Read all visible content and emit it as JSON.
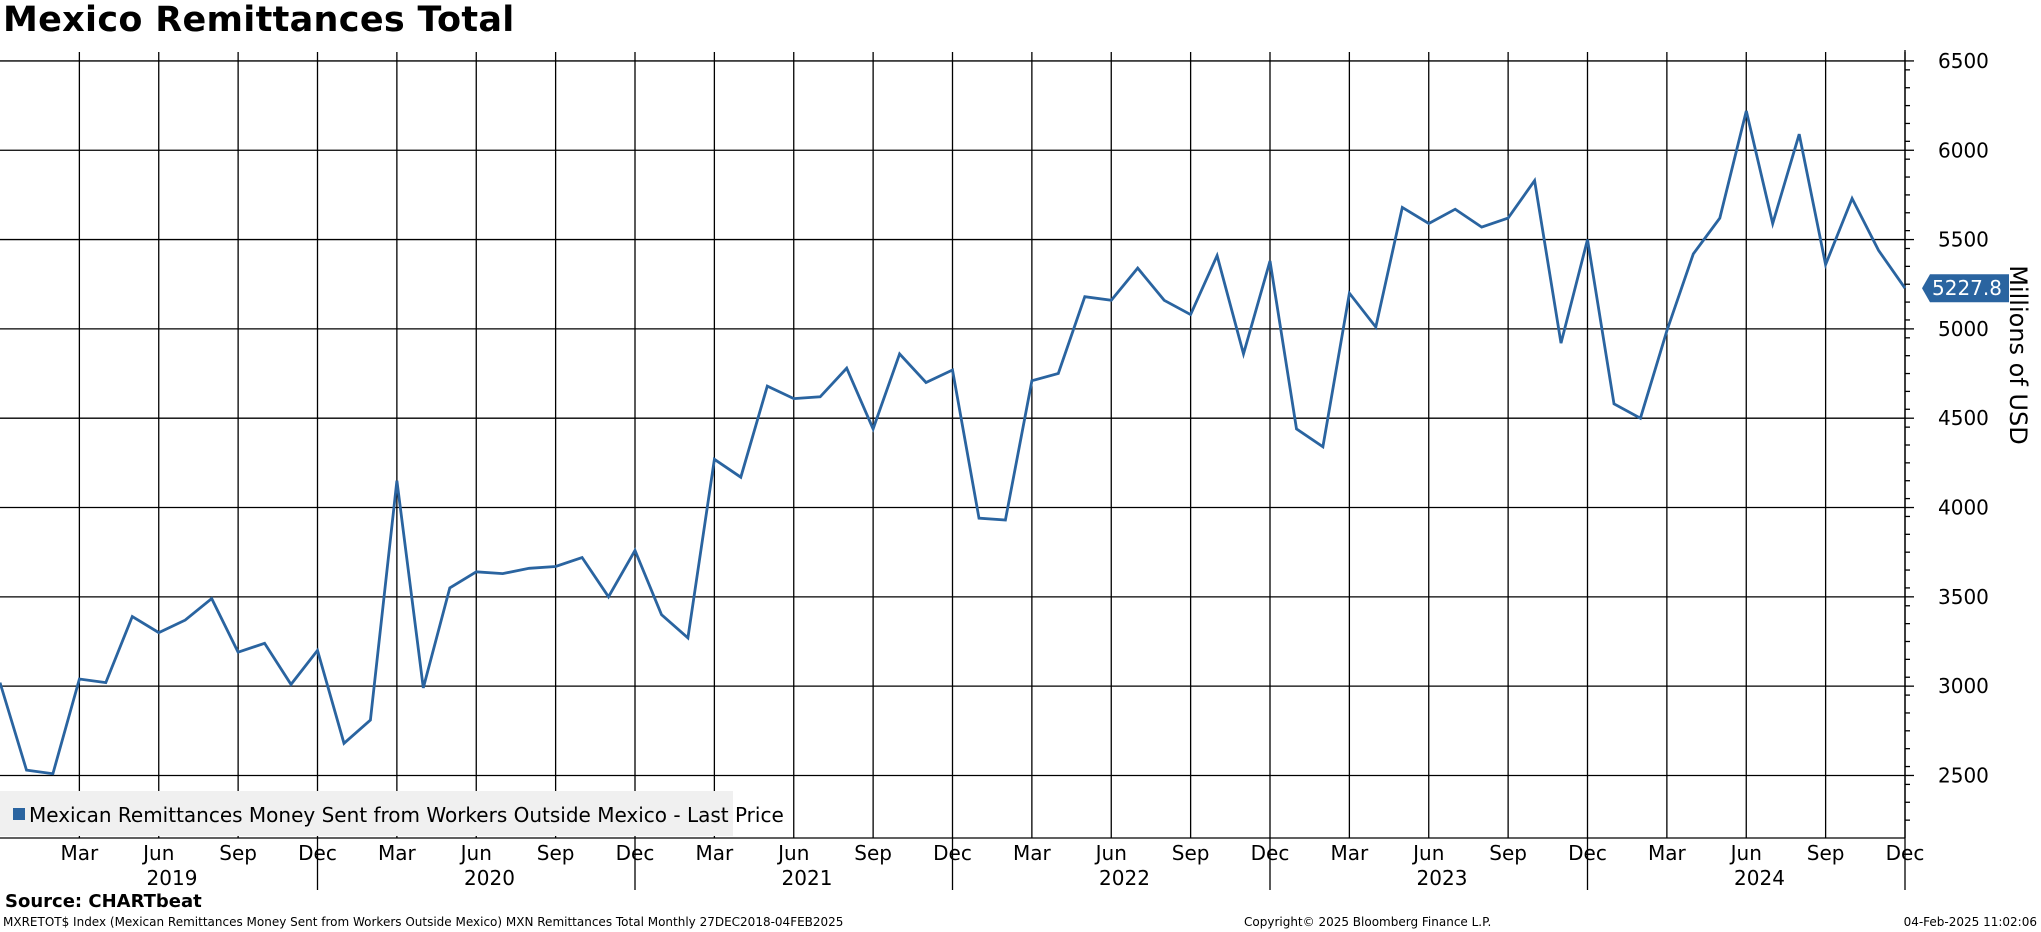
{
  "title": "Mexico Remittances Total",
  "source": "Source: CHARTbeat",
  "footer": {
    "left": "MXRETOT$ Index (Mexican Remittances Money Sent from Workers Outside Mexico) MXN Remittances Total  Monthly 27DEC2018-04FEB2025",
    "middle": "Copyright© 2025 Bloomberg Finance L.P.",
    "right": "04-Feb-2025 11:02:06"
  },
  "colors": {
    "series": "#2a64a0",
    "legend_bg": "#f0f0f0"
  },
  "chart_data": {
    "type": "line",
    "title": "Mexico Remittances Total",
    "ylabel": "Millions of USD",
    "ylim": [
      2150,
      6550
    ],
    "yticks": [
      2500,
      3000,
      3500,
      4000,
      4500,
      5000,
      5500,
      6000,
      6500
    ],
    "x_start": "2018-12",
    "x_end": "2024-12",
    "month_ticks": [
      "Mar",
      "Jun",
      "Sep",
      "Dec",
      "Mar",
      "Jun",
      "Sep",
      "Dec",
      "Mar",
      "Jun",
      "Sep",
      "Dec",
      "Mar",
      "Jun",
      "Sep",
      "Dec",
      "Mar",
      "Jun",
      "Sep",
      "Dec",
      "Mar",
      "Jun",
      "Sep",
      "Dec"
    ],
    "year_labels": [
      "2019",
      "2020",
      "2021",
      "2022",
      "2023",
      "2024"
    ],
    "grid": true,
    "legend_position": "bottom-left",
    "series": [
      {
        "name": "Mexican Remittances Money Sent from Workers Outside Mexico - Last Price",
        "last_value_label": "5227.8",
        "x": [
          "2018-12",
          "2019-01",
          "2019-02",
          "2019-03",
          "2019-04",
          "2019-05",
          "2019-06",
          "2019-07",
          "2019-08",
          "2019-09",
          "2019-10",
          "2019-11",
          "2019-12",
          "2020-01",
          "2020-02",
          "2020-03",
          "2020-04",
          "2020-05",
          "2020-06",
          "2020-07",
          "2020-08",
          "2020-09",
          "2020-10",
          "2020-11",
          "2020-12",
          "2021-01",
          "2021-02",
          "2021-03",
          "2021-04",
          "2021-05",
          "2021-06",
          "2021-07",
          "2021-08",
          "2021-09",
          "2021-10",
          "2021-11",
          "2021-12",
          "2022-01",
          "2022-02",
          "2022-03",
          "2022-04",
          "2022-05",
          "2022-06",
          "2022-07",
          "2022-08",
          "2022-09",
          "2022-10",
          "2022-11",
          "2022-12",
          "2023-01",
          "2023-02",
          "2023-03",
          "2023-04",
          "2023-05",
          "2023-06",
          "2023-07",
          "2023-08",
          "2023-09",
          "2023-10",
          "2023-11",
          "2023-12",
          "2024-01",
          "2024-02",
          "2024-03",
          "2024-04",
          "2024-05",
          "2024-06",
          "2024-07",
          "2024-08",
          "2024-09",
          "2024-10",
          "2024-11",
          "2024-12"
        ],
        "values": [
          3020,
          2530,
          2510,
          3040,
          3020,
          3390,
          3300,
          3370,
          3490,
          3190,
          3240,
          3010,
          3200,
          2680,
          2810,
          4150,
          2990,
          3550,
          3640,
          3630,
          3660,
          3670,
          3720,
          3500,
          3760,
          3400,
          3270,
          4270,
          4170,
          4680,
          4610,
          4620,
          4780,
          4440,
          4860,
          4700,
          4770,
          3940,
          3930,
          4710,
          4750,
          5180,
          5160,
          5340,
          5160,
          5080,
          5410,
          4860,
          5380,
          4440,
          4340,
          5200,
          5010,
          5680,
          5590,
          5670,
          5570,
          5620,
          5830,
          4920,
          5500,
          4580,
          4500,
          4990,
          5420,
          5620,
          6220,
          5590,
          6090,
          5360,
          5730,
          5440,
          5227.8
        ]
      }
    ]
  }
}
